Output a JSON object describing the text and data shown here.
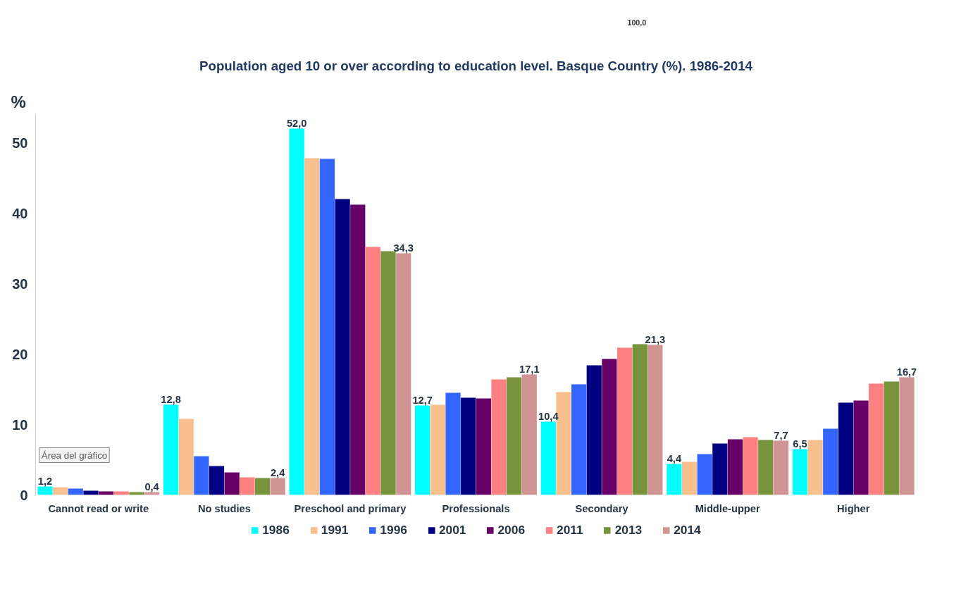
{
  "chart_data": {
    "type": "bar",
    "title": "Population aged 10 or over according to education level. Basque Country (%). 1986-2014",
    "ylabel": "%",
    "categories": [
      "Cannot read or write",
      "No studies",
      "Preschool and primary",
      "Professionals",
      "Secondary",
      "Middle-upper",
      "Higher"
    ],
    "series": [
      {
        "name": "1986",
        "color": "#00ffff",
        "values": [
          1.2,
          12.8,
          52.0,
          12.7,
          10.4,
          4.4,
          6.5
        ],
        "value_labels": [
          "1,2",
          "12,8",
          "52,0",
          "12,7",
          "10,4",
          "4,4",
          "6,5"
        ]
      },
      {
        "name": "1991",
        "color": "#f9c08f",
        "values": [
          1.1,
          10.8,
          47.8,
          12.8,
          14.6,
          4.7,
          7.8
        ]
      },
      {
        "name": "1996",
        "color": "#3366ff",
        "values": [
          0.9,
          5.5,
          47.7,
          14.5,
          15.7,
          5.8,
          9.4
        ]
      },
      {
        "name": "2001",
        "color": "#000080",
        "values": [
          0.6,
          4.1,
          42.0,
          13.8,
          18.4,
          7.3,
          13.1
        ]
      },
      {
        "name": "2006",
        "color": "#660066",
        "values": [
          0.5,
          3.2,
          41.2,
          13.7,
          19.3,
          7.9,
          13.4
        ]
      },
      {
        "name": "2011",
        "color": "#ff8080",
        "values": [
          0.5,
          2.5,
          35.2,
          16.4,
          20.9,
          8.2,
          15.8
        ]
      },
      {
        "name": "2013",
        "color": "#77933c",
        "values": [
          0.4,
          2.4,
          34.6,
          16.7,
          21.4,
          7.8,
          16.1
        ]
      },
      {
        "name": "2014",
        "color": "#d09494",
        "values": [
          0.4,
          2.4,
          34.3,
          17.1,
          21.3,
          7.7,
          16.7
        ],
        "value_labels": [
          "0,4",
          "2,4",
          "34,3",
          "17,1",
          "21,3",
          "7,7",
          "16,7"
        ]
      }
    ],
    "ylim": [
      0,
      54
    ],
    "yticks": [
      0,
      10,
      20,
      30,
      40,
      50
    ],
    "grid": false,
    "legend": "bottom",
    "annotations": [
      "100,0",
      "Área del gráfico"
    ]
  }
}
